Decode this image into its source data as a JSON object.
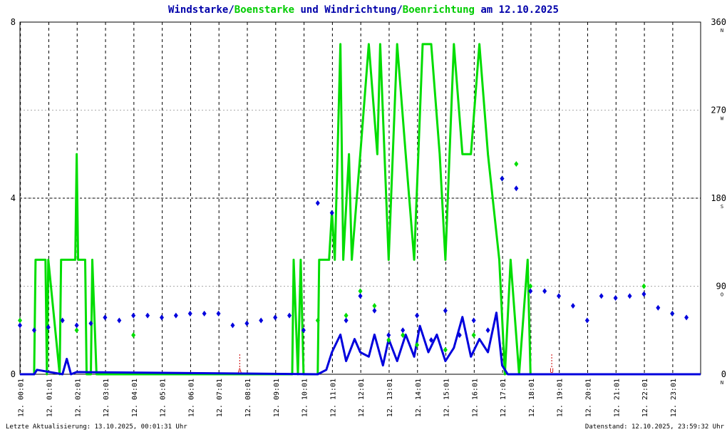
{
  "chart_data": {
    "type": "line",
    "title_parts": [
      {
        "text": "Windstarke/",
        "color": "#0000aa"
      },
      {
        "text": "Boenstarke",
        "color": "#00cc00"
      },
      {
        "text": " und Windrichtung/",
        "color": "#0000aa"
      },
      {
        "text": "Boenrichtung",
        "color": "#00cc00"
      },
      {
        "text": " am 12.10.2025",
        "color": "#0000aa"
      }
    ],
    "xlim": [
      0,
      24
    ],
    "xticks": [
      {
        "value": 0.017,
        "label": "12. 00:01"
      },
      {
        "value": 1.017,
        "label": "12. 01:01"
      },
      {
        "value": 2.017,
        "label": "12. 02:01"
      },
      {
        "value": 3.017,
        "label": "12. 03:01"
      },
      {
        "value": 4.017,
        "label": "12. 04:01"
      },
      {
        "value": 5.017,
        "label": "12. 05:01"
      },
      {
        "value": 6.017,
        "label": "12. 06:01"
      },
      {
        "value": 7.017,
        "label": "12. 07:01"
      },
      {
        "value": 8.017,
        "label": "12. 08:01"
      },
      {
        "value": 9.017,
        "label": "12. 09:01"
      },
      {
        "value": 10.017,
        "label": "12. 10:01"
      },
      {
        "value": 11.017,
        "label": "12. 11:01"
      },
      {
        "value": 12.017,
        "label": "12. 12:01"
      },
      {
        "value": 13.017,
        "label": "12. 13:01"
      },
      {
        "value": 14.017,
        "label": "12. 14:01"
      },
      {
        "value": 15.017,
        "label": "12. 15:01"
      },
      {
        "value": 16.017,
        "label": "12. 16:01"
      },
      {
        "value": 17.017,
        "label": "12. 17:01"
      },
      {
        "value": 18.017,
        "label": "12. 18:01"
      },
      {
        "value": 19.017,
        "label": "12. 19:01"
      },
      {
        "value": 20.017,
        "label": "12. 20:01"
      },
      {
        "value": 21.017,
        "label": "12. 21:01"
      },
      {
        "value": 22.017,
        "label": "12. 22:01"
      },
      {
        "value": 23.017,
        "label": "12. 23:01"
      }
    ],
    "ylim": [
      0,
      8
    ],
    "yticks": [
      0,
      4,
      8
    ],
    "y2lim": [
      0,
      360
    ],
    "y2ticks": [
      0,
      90,
      180,
      270,
      360
    ],
    "y2_directions": [
      {
        "value": 0,
        "label": "N"
      },
      {
        "value": 90,
        "label": "O"
      },
      {
        "value": 180,
        "label": "S"
      },
      {
        "value": 270,
        "label": "W"
      },
      {
        "value": 360,
        "label": "N"
      }
    ],
    "grid": true,
    "series": [
      {
        "name": "Boenstarke",
        "color": "#00dd00",
        "kind": "line",
        "x": [
          0,
          0.5,
          0.55,
          0.9,
          0.95,
          1.0,
          1.4,
          1.45,
          1.95,
          2.0,
          2.05,
          2.3,
          2.35,
          2.5,
          2.55,
          2.7,
          9.6,
          9.65,
          9.8,
          9.9,
          10.0,
          10.5,
          10.55,
          10.9,
          11.0,
          11.1,
          11.3,
          11.4,
          11.6,
          11.7,
          12.0,
          12.3,
          12.6,
          12.7,
          13.0,
          13.3,
          13.6,
          13.9,
          14.2,
          14.5,
          14.8,
          15.0,
          15.3,
          15.6,
          15.9,
          16.2,
          16.5,
          16.9,
          17.1,
          17.3,
          17.6,
          17.9,
          18.0,
          18.3,
          24
        ],
        "values": [
          0,
          0,
          2.6,
          2.6,
          0,
          2.6,
          0,
          2.6,
          2.6,
          5,
          2.6,
          2.6,
          0,
          0,
          2.6,
          0,
          0,
          2.6,
          0,
          2.6,
          0,
          0,
          2.6,
          2.6,
          3.7,
          2.6,
          7.5,
          2.6,
          5,
          2.6,
          5,
          7.5,
          5,
          7.5,
          2.6,
          7.5,
          5,
          2.6,
          7.5,
          7.5,
          5,
          2.6,
          7.5,
          5,
          5,
          7.5,
          5,
          2.6,
          0,
          2.6,
          0,
          2.6,
          0,
          0,
          0
        ]
      },
      {
        "name": "Windstarke",
        "color": "#0000dd",
        "kind": "line",
        "x": [
          0,
          0.5,
          0.6,
          1.5,
          1.65,
          1.8,
          2.0,
          10.5,
          10.8,
          11.0,
          11.3,
          11.5,
          11.8,
          12.0,
          12.3,
          12.5,
          12.8,
          13.0,
          13.3,
          13.6,
          13.9,
          14.1,
          14.4,
          14.7,
          15.0,
          15.3,
          15.6,
          15.9,
          16.2,
          16.5,
          16.8,
          17.0,
          17.2,
          24
        ],
        "values": [
          0,
          0,
          0.1,
          0,
          0.35,
          0,
          0.05,
          0,
          0.1,
          0.5,
          0.9,
          0.3,
          0.8,
          0.5,
          0.4,
          0.9,
          0.2,
          0.8,
          0.3,
          0.9,
          0.4,
          1.1,
          0.5,
          0.9,
          0.3,
          0.6,
          1.3,
          0.4,
          0.8,
          0.5,
          1.4,
          0.2,
          0,
          0
        ]
      },
      {
        "name": "Boenrichtung",
        "color": "#00dd00",
        "kind": "points",
        "axis": "y2",
        "x": [
          0,
          2,
          4,
          10.5,
          11.5,
          12,
          12.5,
          13,
          13.5,
          14,
          15,
          16,
          17,
          17.5,
          18,
          22,
          23
        ],
        "values": [
          55,
          45,
          40,
          55,
          60,
          85,
          70,
          35,
          40,
          30,
          25,
          40,
          200,
          215,
          90,
          90,
          62
        ]
      },
      {
        "name": "Windrichtung",
        "color": "#0000dd",
        "kind": "points",
        "axis": "y2",
        "x": [
          0,
          0.5,
          1,
          1.5,
          2,
          2.5,
          3,
          3.5,
          4,
          4.5,
          5,
          5.5,
          6,
          6.5,
          7,
          7.5,
          8,
          8.5,
          9,
          9.5,
          10,
          10.5,
          11,
          11.5,
          12,
          12.5,
          13,
          13.5,
          14,
          14.5,
          15,
          15.5,
          16,
          16.5,
          17,
          17.5,
          18,
          18.5,
          19,
          19.5,
          20,
          20.5,
          21,
          21.5,
          22,
          22.5,
          23,
          23.5
        ],
        "values": [
          50,
          45,
          48,
          55,
          50,
          52,
          58,
          55,
          60,
          60,
          58,
          60,
          62,
          62,
          62,
          50,
          52,
          55,
          58,
          60,
          45,
          175,
          165,
          55,
          80,
          65,
          40,
          45,
          60,
          35,
          65,
          40,
          55,
          45,
          200,
          190,
          85,
          85,
          80,
          70,
          55,
          80,
          78,
          80,
          82,
          68,
          62,
          58
        ]
      }
    ],
    "annotations": [
      {
        "text": "A",
        "x": 7.75,
        "color": "#cc0000"
      },
      {
        "text": "U",
        "x": 18.75,
        "color": "#cc0000"
      }
    ],
    "footer_left": "Letzte Aktualisierung: 13.10.2025, 00:01:31 Uhr",
    "footer_right": "Datenstand: 12.10.2025, 23:59:32 Uhr"
  }
}
